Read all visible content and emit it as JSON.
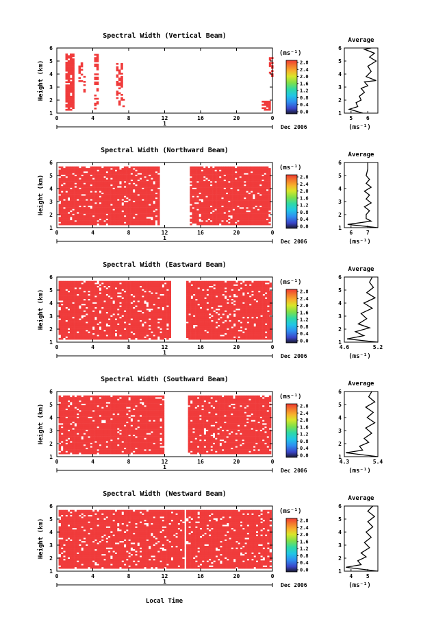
{
  "chart_data": [
    {
      "type": "heatmap",
      "title": "Spectral Width (Vertical Beam)",
      "ylabel": "Height (km)",
      "xlabel": "Local Time",
      "x_ticks": [
        "0",
        "4",
        "8",
        "12",
        "16",
        "20",
        "0"
      ],
      "y_ticks": [
        "1",
        "2",
        "3",
        "4",
        "5",
        "6"
      ],
      "xlim": [
        0,
        24
      ],
      "ylim": [
        1,
        6
      ],
      "date_label": "Dec 2006",
      "day_label": "1",
      "colorbar": {
        "unit": "(ms⁻¹)",
        "ticks": [
          "2.8",
          "2.4",
          "2.0",
          "1.6",
          "1.2",
          "0.8",
          "0.4",
          "0.0"
        ]
      },
      "average_profile": {
        "title": "Average",
        "xlabel": "(ms⁻¹)",
        "x_ticks": [
          "5",
          "6"
        ],
        "y_ticks": [
          "1",
          "2",
          "3",
          "4",
          "5",
          "6"
        ],
        "xlim": [
          4.6,
          6.6
        ],
        "ylim": [
          1,
          6
        ]
      }
    },
    {
      "type": "heatmap",
      "title": "Spectral Width (Northward Beam)",
      "ylabel": "Height (km)",
      "xlabel": "Local Time",
      "x_ticks": [
        "0",
        "4",
        "8",
        "12",
        "16",
        "20",
        "0"
      ],
      "y_ticks": [
        "1",
        "2",
        "3",
        "4",
        "5",
        "6"
      ],
      "xlim": [
        0,
        24
      ],
      "ylim": [
        1,
        6
      ],
      "date_label": "Dec 2006",
      "day_label": "1",
      "colorbar": {
        "unit": "(ms⁻¹)",
        "ticks": [
          "2.8",
          "2.4",
          "2.0",
          "1.6",
          "1.2",
          "0.8",
          "0.4",
          "0.0"
        ]
      },
      "average_profile": {
        "title": "Average",
        "xlabel": "(ms⁻¹)",
        "x_ticks": [
          "6",
          "7"
        ],
        "y_ticks": [
          "1",
          "2",
          "3",
          "4",
          "5",
          "6"
        ],
        "xlim": [
          5.6,
          7.6
        ],
        "ylim": [
          1,
          6
        ]
      }
    },
    {
      "type": "heatmap",
      "title": "Spectral Width (Eastward Beam)",
      "ylabel": "Height (km)",
      "xlabel": "Local Time",
      "x_ticks": [
        "0",
        "4",
        "8",
        "12",
        "16",
        "20",
        "0"
      ],
      "y_ticks": [
        "1",
        "2",
        "3",
        "4",
        "5",
        "6"
      ],
      "xlim": [
        0,
        24
      ],
      "ylim": [
        1,
        6
      ],
      "date_label": "Dec 2006",
      "day_label": "1",
      "colorbar": {
        "unit": "(ms⁻¹)",
        "ticks": [
          "2.8",
          "2.4",
          "2.0",
          "1.6",
          "1.2",
          "0.8",
          "0.4",
          "0.0"
        ]
      },
      "average_profile": {
        "title": "Average",
        "xlabel": "(ms⁻¹)",
        "x_ticks": [
          "4.6",
          "5.2"
        ],
        "y_ticks": [
          "1",
          "2",
          "3",
          "4",
          "5",
          "6"
        ],
        "xlim": [
          4.6,
          5.2
        ],
        "ylim": [
          1,
          6
        ]
      }
    },
    {
      "type": "heatmap",
      "title": "Spectral Width (Southward Beam)",
      "ylabel": "Height (km)",
      "xlabel": "Local Time",
      "x_ticks": [
        "0",
        "4",
        "8",
        "12",
        "16",
        "20",
        "0"
      ],
      "y_ticks": [
        "1",
        "2",
        "3",
        "4",
        "5",
        "6"
      ],
      "xlim": [
        0,
        24
      ],
      "ylim": [
        1,
        6
      ],
      "date_label": "Dec 2006",
      "day_label": "1",
      "colorbar": {
        "unit": "(ms⁻¹)",
        "ticks": [
          "2.8",
          "2.4",
          "2.0",
          "1.6",
          "1.2",
          "0.8",
          "0.4",
          "0.0"
        ]
      },
      "average_profile": {
        "title": "Average",
        "xlabel": "(ms⁻¹)",
        "x_ticks": [
          "4.3",
          "5.4"
        ],
        "y_ticks": [
          "1",
          "2",
          "3",
          "4",
          "5",
          "6"
        ],
        "xlim": [
          4.3,
          5.4
        ],
        "ylim": [
          1,
          6
        ]
      }
    },
    {
      "type": "heatmap",
      "title": "Spectral Width (Westward Beam)",
      "ylabel": "Height (km)",
      "xlabel": "Local Time",
      "x_ticks": [
        "0",
        "4",
        "8",
        "12",
        "16",
        "20",
        "0"
      ],
      "y_ticks": [
        "1",
        "2",
        "3",
        "4",
        "5",
        "6"
      ],
      "xlim": [
        0,
        24
      ],
      "ylim": [
        1,
        6
      ],
      "date_label": "Dec 2006",
      "day_label": "1",
      "colorbar": {
        "unit": "(ms⁻¹)",
        "ticks": [
          "2.8",
          "2.4",
          "2.0",
          "1.6",
          "1.2",
          "0.8",
          "0.4",
          "0.0"
        ]
      },
      "average_profile": {
        "title": "Average",
        "xlabel": "(ms⁻¹)",
        "x_ticks": [
          "4",
          "5"
        ],
        "y_ticks": [
          "1",
          "2",
          "3",
          "4",
          "5",
          "6"
        ],
        "xlim": [
          3.6,
          5.6
        ],
        "ylim": [
          1,
          6
        ]
      }
    }
  ],
  "colors": {
    "data": "#f03b3b",
    "colorbar_scale": [
      "#1a1a2e",
      "#3a45c8",
      "#2f8ef0",
      "#21c6e6",
      "#2fd9a6",
      "#7fe04a",
      "#d8e62a",
      "#f7b22c",
      "#f37a2d",
      "#ef3b32"
    ]
  }
}
